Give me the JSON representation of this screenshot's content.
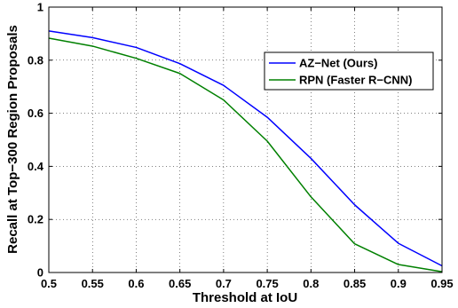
{
  "chart_data": {
    "type": "line",
    "title": "",
    "xlabel": "Threshold at IoU",
    "ylabel": "Recall at Top−300 Region Proposals",
    "xlim": [
      0.5,
      0.95
    ],
    "ylim": [
      0,
      1
    ],
    "xticks": [
      0.5,
      0.55,
      0.6,
      0.65,
      0.7,
      0.75,
      0.8,
      0.85,
      0.9,
      0.95
    ],
    "xtick_labels": [
      "0.5",
      "0.55",
      "0.6",
      "0.65",
      "0.7",
      "0.75",
      "0.8",
      "0.85",
      "0.9",
      "0.95"
    ],
    "yticks": [
      0,
      0.2,
      0.4,
      0.6,
      0.8,
      1
    ],
    "ytick_labels": [
      "0",
      "0.2",
      "0.4",
      "0.6",
      "0.8",
      "1"
    ],
    "grid": "dotted",
    "legend_position": "top-right",
    "x": [
      0.5,
      0.55,
      0.6,
      0.65,
      0.7,
      0.75,
      0.8,
      0.85,
      0.9,
      0.95
    ],
    "series": [
      {
        "name": "AZ−Net (Ours)",
        "color": "#0000ff",
        "values": [
          0.91,
          0.885,
          0.848,
          0.787,
          0.705,
          0.585,
          0.43,
          0.255,
          0.11,
          0.025
        ]
      },
      {
        "name": "RPN (Faster R−CNN)",
        "color": "#008000",
        "values": [
          0.883,
          0.853,
          0.807,
          0.75,
          0.65,
          0.495,
          0.285,
          0.108,
          0.03,
          0.003
        ]
      }
    ]
  }
}
